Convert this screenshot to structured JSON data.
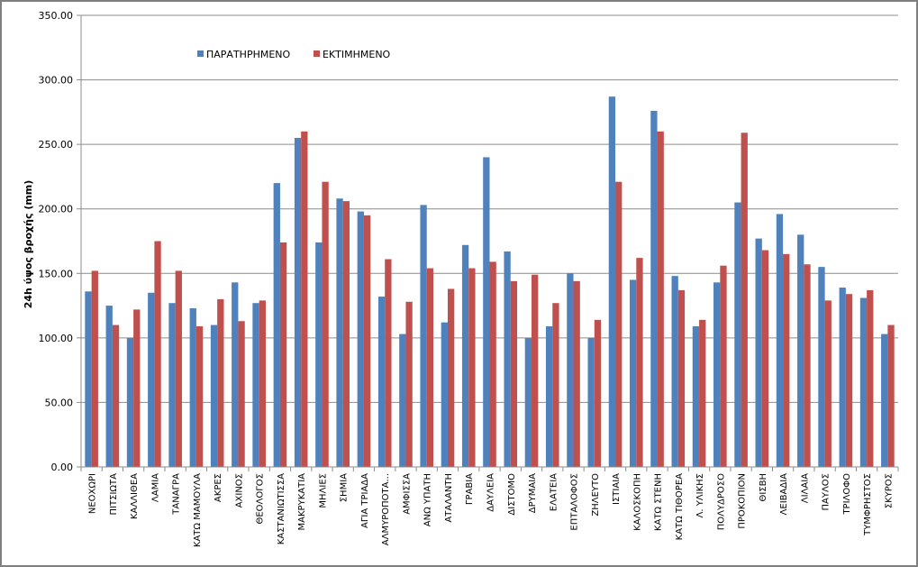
{
  "chart_data": {
    "type": "bar",
    "ylabel": "24h ύψος βροχής (mm)",
    "xlabel": "",
    "title": "",
    "ylim": [
      0,
      350
    ],
    "yticks": [
      "0.00",
      "50.00",
      "100.00",
      "150.00",
      "200.00",
      "250.00",
      "300.00",
      "350.00"
    ],
    "grid": true,
    "legend_position": "top-left",
    "categories": [
      "ΝΕΟΧΩΡΙ",
      "ΠΙΤΣΙΩΤΑ",
      "ΚΑΛΛΙΘΕΑ",
      "ΛΑΜΙΑ",
      "ΤΑΝΑΓΡΑ",
      "ΚΑΤΩ ΜΑΜΟΥΛΑ",
      "ΑΚΡΕΣ",
      "ΑΧΙΝΟΣ",
      "ΘΕΟΛΟΓΟΣ",
      "ΚΑΣΤΑΝΙΩΤΙΣΣΑ",
      "ΜΑΚΡΥΚΑΤΙΑ",
      "ΜΗΛΙΕΣ",
      "ΣΗΜΙΑ",
      "ΑΓΙΑ ΤΡΙΑΔΑ",
      "ΑΛΜΥΡΟΠΟΤΑ...",
      "ΑΜΦΙΣΣΑ",
      "ΑΝΩ ΥΠΑΤΗ",
      "ΑΤΑΛΑΝΤΗ",
      "ΓΡΑΒΙΑ",
      "ΔΑΥΛΕΙΑ",
      "ΔΙΣΤΟΜΟ",
      "ΔΡΥΜΑΙΑ",
      "ΕΛΑΤΕΙΑ",
      "ΕΠΤΑΛΟΦΟΣ",
      "ΖΗΛΕΥΤΟ",
      "ΙΣΤΙΑΙΑ",
      "ΚΑΛΟΣΚΟΠΗ",
      "ΚΑΤΩ ΣΤΕΝΗ",
      "ΚΑΤΩ ΤΙΘΟΡΕΑ",
      "Λ. ΥΛΙΚΗΣ",
      "ΠΟΛΥΔΡΟΣΟ",
      "ΠΡΟΚΟΠΙΟΝ",
      "ΘΙΣΒΗ",
      "ΛΕΙΒΑΔΙΑ",
      "ΛΙΛΑΙΑ",
      "ΠΑΥΛΟΣ",
      "ΤΡΙΛΟΦΟ",
      "ΤΥΜΦΡΗΣΤΟΣ",
      "ΣΚΥΡΟΣ"
    ],
    "series": [
      {
        "name": "ΠΑΡΑΤΗΡΗΜΕΝΟ",
        "color": "#4f81bd",
        "values": [
          136,
          125,
          100,
          135,
          127,
          123,
          110,
          143,
          127,
          220,
          255,
          174,
          208,
          198,
          132,
          103,
          203,
          112,
          172,
          240,
          167,
          100,
          109,
          150,
          100,
          287,
          145,
          276,
          148,
          109,
          143,
          205,
          177,
          196,
          180,
          155,
          139,
          131,
          103
        ]
      },
      {
        "name": "ΕΚΤΙΜΗΜΕΝΟ",
        "color": "#c0504d",
        "values": [
          152,
          110,
          122,
          175,
          152,
          109,
          130,
          113,
          129,
          174,
          260,
          221,
          206,
          195,
          161,
          128,
          154,
          138,
          154,
          159,
          144,
          149,
          127,
          144,
          114,
          221,
          162,
          260,
          137,
          114,
          156,
          259,
          168,
          165,
          157,
          129,
          134,
          137,
          110
        ]
      }
    ]
  }
}
